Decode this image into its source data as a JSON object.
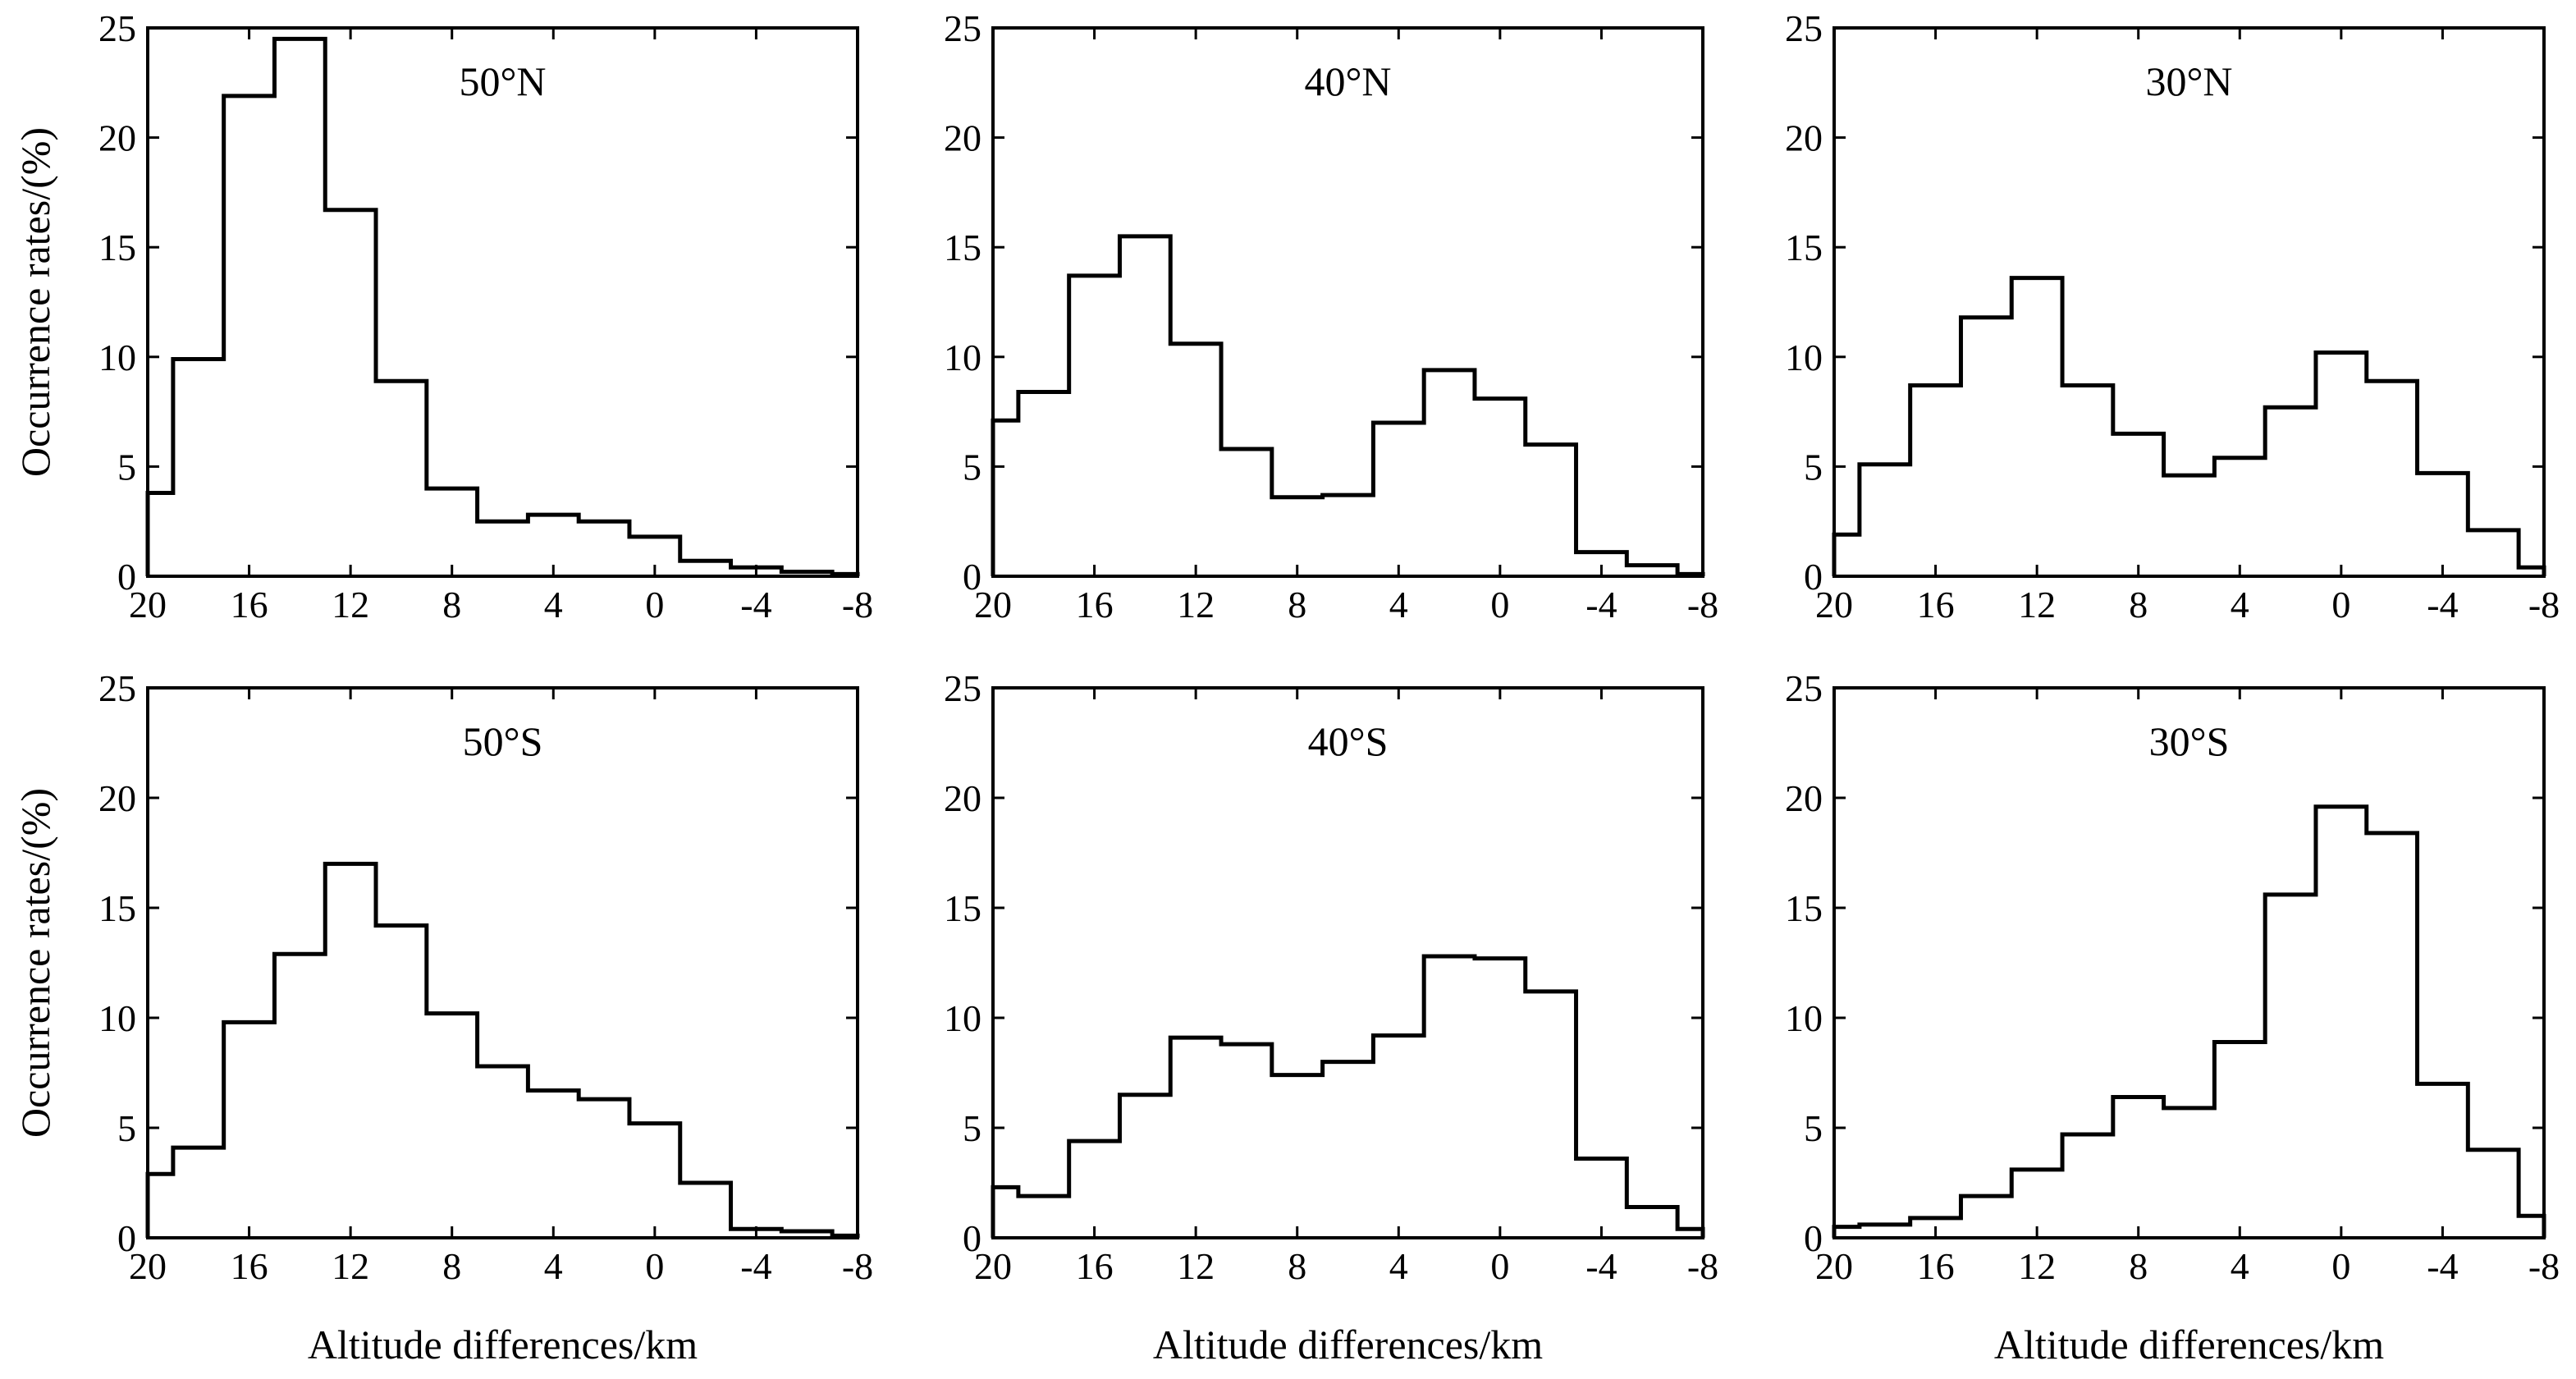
{
  "figure": {
    "ylabel": "Occurrence rates/(%)",
    "xlabel": "Altitude differences/km"
  },
  "chart_data": [
    {
      "type": "bar",
      "title": "50°N",
      "xlabel": "Altitude differences/km",
      "ylabel": "Occurrence rates/(%)",
      "xlim": [
        20,
        -8
      ],
      "ylim": [
        0,
        25
      ],
      "xticks": [
        "20",
        "16",
        "12",
        "8",
        "4",
        "0",
        "-4",
        "-8"
      ],
      "yticks": [
        "0",
        "5",
        "10",
        "15",
        "20",
        "25"
      ],
      "bin_edges": [
        20,
        19,
        17,
        15,
        13,
        11,
        9,
        7,
        5,
        3,
        1,
        -1,
        -3,
        -5,
        -7,
        -8
      ],
      "values": [
        3.8,
        9.9,
        21.9,
        24.5,
        16.7,
        8.9,
        4.0,
        2.5,
        2.8,
        2.5,
        1.8,
        0.7,
        0.4,
        0.2,
        0.1
      ]
    },
    {
      "type": "bar",
      "title": "40°N",
      "xlabel": "Altitude differences/km",
      "ylabel": "Occurrence rates/(%)",
      "xlim": [
        20,
        -8
      ],
      "ylim": [
        0,
        25
      ],
      "xticks": [
        "20",
        "16",
        "12",
        "8",
        "4",
        "0",
        "-4",
        "-8"
      ],
      "yticks": [
        "0",
        "5",
        "10",
        "15",
        "20",
        "25"
      ],
      "bin_edges": [
        20,
        19,
        17,
        15,
        13,
        11,
        9,
        7,
        5,
        3,
        1,
        -1,
        -3,
        -5,
        -7,
        -8
      ],
      "values": [
        7.1,
        8.4,
        13.7,
        15.5,
        10.6,
        5.8,
        3.6,
        3.7,
        7.0,
        9.4,
        8.1,
        6.0,
        1.1,
        0.5,
        0.1
      ]
    },
    {
      "type": "bar",
      "title": "30°N",
      "xlabel": "Altitude differences/km",
      "ylabel": "Occurrence rates/(%)",
      "xlim": [
        20,
        -8
      ],
      "ylim": [
        0,
        25
      ],
      "xticks": [
        "20",
        "16",
        "12",
        "8",
        "4",
        "0",
        "-4",
        "-8"
      ],
      "yticks": [
        "0",
        "5",
        "10",
        "15",
        "20",
        "25"
      ],
      "bin_edges": [
        20,
        19,
        17,
        15,
        13,
        11,
        9,
        7,
        5,
        3,
        1,
        -1,
        -3,
        -5,
        -7,
        -8
      ],
      "values": [
        1.9,
        5.1,
        8.7,
        11.8,
        13.6,
        8.7,
        6.5,
        4.6,
        5.4,
        7.7,
        10.2,
        8.9,
        4.7,
        2.1,
        0.4
      ]
    },
    {
      "type": "bar",
      "title": "50°S",
      "xlabel": "Altitude differences/km",
      "ylabel": "Occurrence rates/(%)",
      "xlim": [
        20,
        -8
      ],
      "ylim": [
        0,
        25
      ],
      "xticks": [
        "20",
        "16",
        "12",
        "8",
        "4",
        "0",
        "-4",
        "-8"
      ],
      "yticks": [
        "0",
        "5",
        "10",
        "15",
        "20",
        "25"
      ],
      "bin_edges": [
        20,
        19,
        17,
        15,
        13,
        11,
        9,
        7,
        5,
        3,
        1,
        -1,
        -3,
        -5,
        -7,
        -8
      ],
      "values": [
        2.9,
        4.1,
        9.8,
        12.9,
        17.0,
        14.2,
        10.2,
        7.8,
        6.7,
        6.3,
        5.2,
        2.5,
        0.4,
        0.3,
        0.1
      ]
    },
    {
      "type": "bar",
      "title": "40°S",
      "xlabel": "Altitude differences/km",
      "ylabel": "Occurrence rates/(%)",
      "xlim": [
        20,
        -8
      ],
      "ylim": [
        0,
        25
      ],
      "xticks": [
        "20",
        "16",
        "12",
        "8",
        "4",
        "0",
        "-4",
        "-8"
      ],
      "yticks": [
        "0",
        "5",
        "10",
        "15",
        "20",
        "25"
      ],
      "bin_edges": [
        20,
        19,
        17,
        15,
        13,
        11,
        9,
        7,
        5,
        3,
        1,
        -1,
        -3,
        -5,
        -7,
        -8
      ],
      "values": [
        2.3,
        1.9,
        4.4,
        6.5,
        9.1,
        8.8,
        7.4,
        8.0,
        9.2,
        12.8,
        12.7,
        11.2,
        3.6,
        1.4,
        0.4
      ]
    },
    {
      "type": "bar",
      "title": "30°S",
      "xlabel": "Altitude differences/km",
      "ylabel": "Occurrence rates/(%)",
      "xlim": [
        20,
        -8
      ],
      "ylim": [
        0,
        25
      ],
      "xticks": [
        "20",
        "16",
        "12",
        "8",
        "4",
        "0",
        "-4",
        "-8"
      ],
      "yticks": [
        "0",
        "5",
        "10",
        "15",
        "20",
        "25"
      ],
      "bin_edges": [
        20,
        19,
        17,
        15,
        13,
        11,
        9,
        7,
        5,
        3,
        1,
        -1,
        -3,
        -5,
        -7,
        -8
      ],
      "values": [
        0.5,
        0.6,
        0.9,
        1.9,
        3.1,
        4.7,
        6.4,
        5.9,
        8.9,
        15.6,
        19.6,
        18.4,
        7.0,
        4.0,
        1.0
      ]
    }
  ]
}
